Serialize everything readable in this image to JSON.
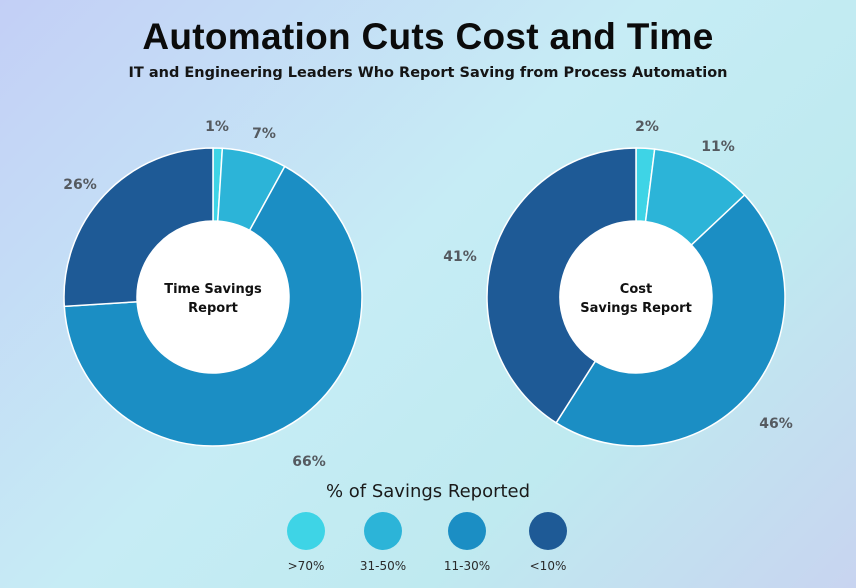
{
  "title": "Automation Cuts Cost and Time",
  "subtitle": "IT and Engineering Leaders Who Report Saving from Process Automation",
  "legend_title": "% of Savings Reported",
  "colors": {
    ">70%": "#3ed4e6",
    "31-50%": "#2cb4d8",
    "11-30%": "#1b8ec4",
    "<10%": "#1e5a96"
  },
  "chart_data": [
    {
      "type": "pie",
      "center_label": "Time Savings\nReport",
      "categories": [
        ">70%",
        "31-50%",
        "11-30%",
        "<10%"
      ],
      "values": [
        1,
        7,
        66,
        26
      ],
      "labels": [
        "1%",
        "7%",
        "66%",
        "26%"
      ]
    },
    {
      "type": "pie",
      "center_label": "Cost\nSavings Report",
      "categories": [
        ">70%",
        "31-50%",
        "11-30%",
        "<10%"
      ],
      "values": [
        2,
        11,
        46,
        41
      ],
      "labels": [
        "2%",
        "11%",
        "46%",
        "41%"
      ]
    }
  ],
  "legend": [
    ">70%",
    "31-50%",
    "11-30%",
    "<10%"
  ]
}
